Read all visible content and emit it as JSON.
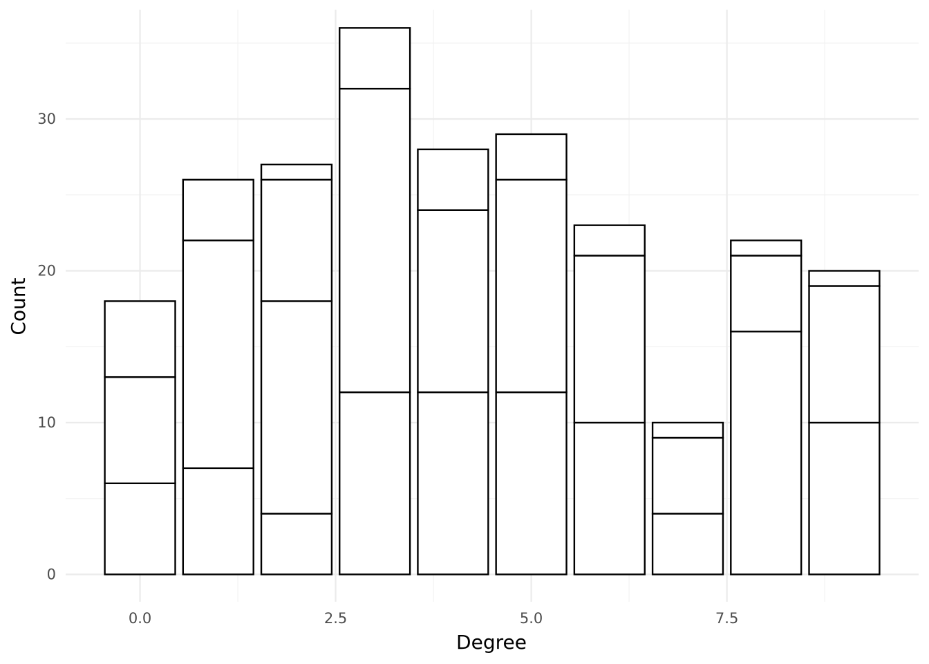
{
  "chart_data": {
    "type": "bar",
    "stacked": true,
    "title": "",
    "xlabel": "Degree",
    "ylabel": "Count",
    "x": [
      0,
      1,
      2,
      3,
      4,
      5,
      6,
      7,
      8,
      9
    ],
    "segment_boundaries": [
      [
        6,
        13,
        18
      ],
      [
        7,
        22,
        26
      ],
      [
        4,
        18,
        26,
        27
      ],
      [
        12,
        32,
        36
      ],
      [
        12,
        24,
        28
      ],
      [
        12,
        26,
        29
      ],
      [
        10,
        21,
        23
      ],
      [
        4,
        9,
        10
      ],
      [
        16,
        21,
        22
      ],
      [
        10,
        19,
        20
      ]
    ],
    "totals": [
      18,
      26,
      27,
      36,
      28,
      29,
      23,
      10,
      22,
      20
    ],
    "xlim": [
      -0.95,
      9.95
    ],
    "ylim": [
      -1.8,
      37.2
    ],
    "x_ticks": [
      0.0,
      2.5,
      5.0,
      7.5
    ],
    "x_tick_labels": [
      "0.0",
      "2.5",
      "5.0",
      "7.5"
    ],
    "y_ticks": [
      0,
      10,
      20,
      30
    ],
    "y_tick_labels": [
      "0",
      "10",
      "20",
      "30"
    ],
    "grid": true,
    "legend": "none",
    "colors": {
      "bar_fill": "#ffffff",
      "bar_outline": "#000000",
      "grid": "#ebebeb",
      "tick_text": "#4d4d4d"
    }
  }
}
